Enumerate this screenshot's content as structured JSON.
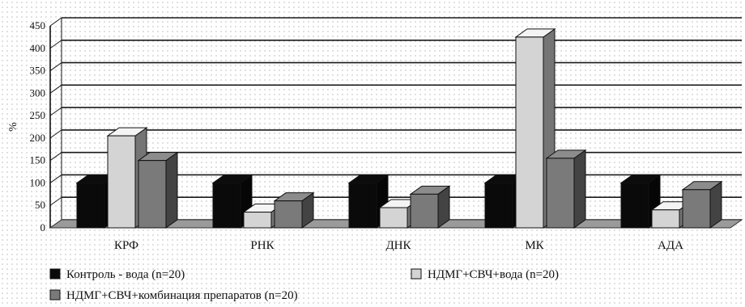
{
  "chart_data": {
    "type": "bar",
    "title": "",
    "xlabel": "",
    "ylabel": "%",
    "ylim": [
      0,
      450
    ],
    "yticks": [
      0,
      50,
      100,
      150,
      200,
      250,
      300,
      350,
      400,
      450
    ],
    "grid": true,
    "style": "3d-clustered",
    "legend_position": "bottom",
    "categories": [
      "КРФ",
      "РНК",
      "ДНК",
      "МК",
      "АДА"
    ],
    "series": [
      {
        "name": "Контроль - вода (n=20)",
        "values": [
          100,
          100,
          100,
          100,
          100
        ],
        "color": "#0a0a0a"
      },
      {
        "name": "НДМГ+СВЧ+вода (n=20)",
        "values": [
          205,
          35,
          45,
          425,
          40
        ],
        "color": "#d4d4d4"
      },
      {
        "name": "НДМГ+СВЧ+комбинация препаратов (n=20)",
        "values": [
          150,
          60,
          75,
          155,
          85
        ],
        "color": "#7a7a7a"
      }
    ]
  }
}
